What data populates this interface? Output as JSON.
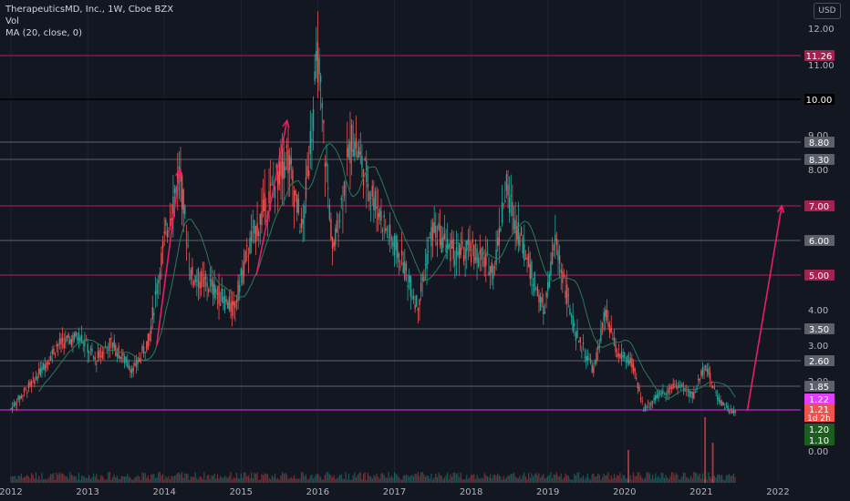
{
  "legend": {
    "symbol_line": "TherapeuticsMD, Inc., 1W, Cboe BZX",
    "volume_line": "Vol",
    "ma_line": "MA (20, close, 0)"
  },
  "currency_button": "USD",
  "colors": {
    "background": "#131722",
    "up": "#26a69a",
    "down": "#ef5350",
    "ma": "#2b7a5a",
    "resistance": "#c2185b",
    "support": "#787b86",
    "round_level": "#000000",
    "arrow": "#e91e63"
  },
  "chart_data": {
    "type": "candlestick",
    "x_axis_labels": [
      "2012",
      "2013",
      "2014",
      "2015",
      "2016",
      "2017",
      "2018",
      "2019",
      "2020",
      "2021",
      "2022"
    ],
    "y_axis_ticks": [
      "12.00",
      "11.00",
      "9.00",
      "8.00",
      "6.00",
      "4.00",
      "3.00",
      "2.00",
      "0.00"
    ],
    "ylim": [
      0,
      12.4
    ],
    "x_range": [
      2012.0,
      2022.2
    ],
    "horizontal_levels": [
      {
        "value": 11.26,
        "label": "11.26",
        "style": "resistance"
      },
      {
        "value": 10.0,
        "label": "10.00",
        "style": "round"
      },
      {
        "value": 8.8,
        "label": "8.80",
        "style": "support"
      },
      {
        "value": 8.3,
        "label": "8.30",
        "style": "support"
      },
      {
        "value": 7.0,
        "label": "7.00",
        "style": "resistance"
      },
      {
        "value": 6.0,
        "label": "6.00",
        "style": "support"
      },
      {
        "value": 5.0,
        "label": "5.00",
        "style": "resistance"
      },
      {
        "value": 3.5,
        "label": "3.50",
        "style": "support"
      },
      {
        "value": 2.6,
        "label": "2.60",
        "style": "support"
      },
      {
        "value": 1.85,
        "label": "1.85",
        "style": "support"
      },
      {
        "value": 1.2,
        "label": "1.20",
        "style": "green"
      },
      {
        "value": 1.1,
        "label": "1.10",
        "style": "green"
      }
    ],
    "price_markers": [
      {
        "label": "1.22",
        "value": 1.22,
        "color": "#e040fb"
      },
      {
        "label": "1.21",
        "value": 1.21,
        "color": "#ef5350"
      },
      {
        "label": "1d 2h",
        "value": 1.21,
        "color": "#ef5350"
      }
    ],
    "arrows": [
      {
        "from": [
          2013.9,
          3.0
        ],
        "to": [
          2014.2,
          8.0
        ]
      },
      {
        "from": [
          2015.2,
          5.0
        ],
        "to": [
          2015.6,
          9.4
        ]
      },
      {
        "from": [
          2021.6,
          1.25
        ],
        "to": [
          2022.05,
          7.0
        ]
      }
    ],
    "price_path": [
      [
        2012.0,
        1.3
      ],
      [
        2012.3,
        2.0
      ],
      [
        2012.6,
        3.0
      ],
      [
        2012.9,
        3.3
      ],
      [
        2013.1,
        2.6
      ],
      [
        2013.3,
        3.1
      ],
      [
        2013.6,
        2.3
      ],
      [
        2013.8,
        3.2
      ],
      [
        2014.0,
        6.0
      ],
      [
        2014.2,
        8.0
      ],
      [
        2014.35,
        5.0
      ],
      [
        2014.6,
        4.7
      ],
      [
        2014.9,
        4.0
      ],
      [
        2015.1,
        5.8
      ],
      [
        2015.4,
        7.4
      ],
      [
        2015.6,
        8.5
      ],
      [
        2015.8,
        6.2
      ],
      [
        2016.0,
        11.2
      ],
      [
        2016.2,
        5.6
      ],
      [
        2016.45,
        9.0
      ],
      [
        2016.7,
        7.4
      ],
      [
        2016.9,
        6.3
      ],
      [
        2017.1,
        5.4
      ],
      [
        2017.3,
        4.1
      ],
      [
        2017.5,
        6.3
      ],
      [
        2017.8,
        5.6
      ],
      [
        2018.0,
        5.7
      ],
      [
        2018.3,
        5.2
      ],
      [
        2018.45,
        7.5
      ],
      [
        2018.7,
        5.7
      ],
      [
        2018.95,
        3.9
      ],
      [
        2019.1,
        6.0
      ],
      [
        2019.35,
        3.4
      ],
      [
        2019.6,
        2.3
      ],
      [
        2019.75,
        3.9
      ],
      [
        2019.9,
        2.8
      ],
      [
        2020.1,
        2.5
      ],
      [
        2020.25,
        1.3
      ],
      [
        2020.5,
        1.7
      ],
      [
        2020.7,
        1.9
      ],
      [
        2020.9,
        1.6
      ],
      [
        2021.05,
        2.5
      ],
      [
        2021.2,
        1.6
      ],
      [
        2021.4,
        1.21
      ]
    ],
    "volume_spikes": [
      {
        "x": 2020.05,
        "value": 0.9
      },
      {
        "x": 2021.05,
        "value": 1.8
      },
      {
        "x": 2021.15,
        "value": 1.1
      }
    ]
  }
}
